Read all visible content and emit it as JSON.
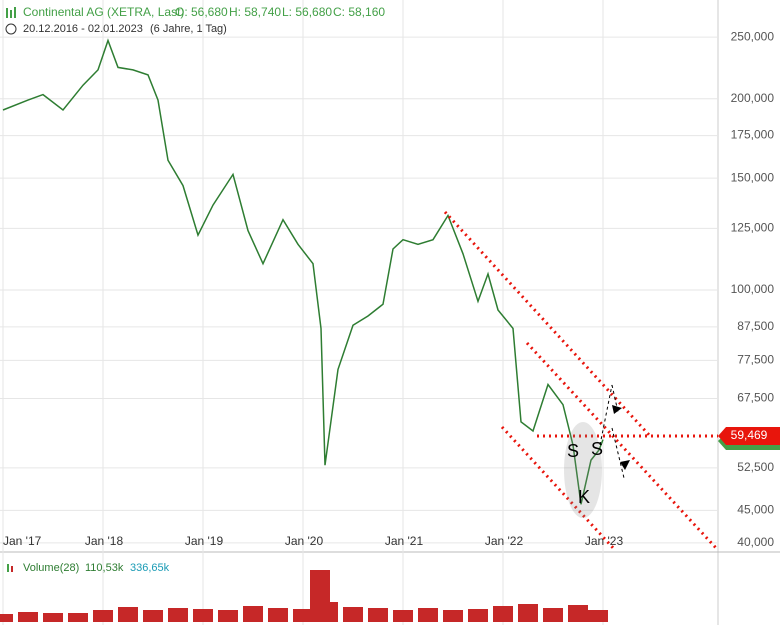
{
  "chart_data": [
    {
      "type": "line",
      "title": "Continental AG (XETRA, Last)",
      "ohlc_labels": [
        "O: 56,680",
        "H: 58,740",
        "L: 56,680",
        "C: 58,160"
      ],
      "subtitle": "20.12.2016 - 02.01.2023",
      "period": "(6 Jahre, 1 Tag)",
      "log_scale": true,
      "grid": true,
      "x": [
        2017.0,
        2017.25,
        2017.4,
        2017.6,
        2017.8,
        2017.95,
        2018.05,
        2018.15,
        2018.3,
        2018.45,
        2018.55,
        2018.65,
        2018.8,
        2018.95,
        2019.1,
        2019.3,
        2019.45,
        2019.6,
        2019.8,
        2019.95,
        2020.1,
        2020.18,
        2020.22,
        2020.35,
        2020.5,
        2020.65,
        2020.8,
        2020.9,
        2021.0,
        2021.15,
        2021.3,
        2021.45,
        2021.6,
        2021.75,
        2021.85,
        2021.95,
        2022.1,
        2022.18,
        2022.3,
        2022.45,
        2022.6,
        2022.7,
        2022.78,
        2022.88,
        2022.96,
        2023.0
      ],
      "series": [
        {
          "name": "Continental AG",
          "color": "#2e7d32",
          "values": [
            192,
            199,
            203,
            192,
            210,
            222,
            247,
            224,
            222,
            218,
            199,
            160,
            146,
            122,
            136,
            152,
            124,
            110,
            129,
            118,
            110,
            87,
            53,
            75,
            88,
            91,
            95,
            116,
            120,
            118,
            120,
            131,
            114,
            96,
            106,
            93,
            87,
            62,
            60,
            71,
            66,
            57,
            46,
            54,
            56,
            58.16
          ]
        }
      ],
      "xlim": [
        2016.97,
        2024.15
      ],
      "xticks": [
        {
          "value": 2017,
          "label": "Jan '17"
        },
        {
          "value": 2018,
          "label": "Jan '18"
        },
        {
          "value": 2019,
          "label": "Jan '19"
        },
        {
          "value": 2020,
          "label": "Jan '20"
        },
        {
          "value": 2021,
          "label": "Jan '21"
        },
        {
          "value": 2022,
          "label": "Jan '22"
        },
        {
          "value": 2023,
          "label": "Jan '23"
        }
      ],
      "ylim": [
        38.7,
        286
      ],
      "yticks": [
        {
          "value": 250,
          "label": "250,000"
        },
        {
          "value": 200,
          "label": "200,000"
        },
        {
          "value": 175,
          "label": "175,000"
        },
        {
          "value": 150,
          "label": "150,000"
        },
        {
          "value": 125,
          "label": "125,000"
        },
        {
          "value": 100,
          "label": "100,000"
        },
        {
          "value": 87.5,
          "label": "87,500"
        },
        {
          "value": 77.5,
          "label": "77,500"
        },
        {
          "value": 67.5,
          "label": "67,500"
        },
        {
          "value": 52.5,
          "label": "52,500"
        },
        {
          "value": 45,
          "label": "45,000"
        },
        {
          "value": 40,
          "label": "40,000"
        }
      ],
      "price_tag": {
        "value": 59.469,
        "label": "59,469",
        "color": "#e8150c"
      },
      "annotations": [
        "S",
        "S",
        "K"
      ]
    },
    {
      "type": "bar",
      "title": "Volume(28)",
      "legend_values": [
        "110,53k",
        "336,65k"
      ],
      "x": [
        2017.0,
        2017.25,
        2017.5,
        2017.75,
        2018.0,
        2018.25,
        2018.5,
        2018.75,
        2019.0,
        2019.25,
        2019.5,
        2019.75,
        2020.0,
        2020.17,
        2020.25,
        2020.5,
        2020.75,
        2021.0,
        2021.25,
        2021.5,
        2021.75,
        2022.0,
        2022.25,
        2022.5,
        2022.75,
        2022.95
      ],
      "values": [
        400,
        500,
        450,
        450,
        600,
        750,
        600,
        700,
        650,
        600,
        800,
        700,
        650,
        2600,
        1000,
        750,
        700,
        600,
        700,
        600,
        650,
        800,
        900,
        700,
        850,
        600
      ],
      "color": "#c62828",
      "ylim": [
        0,
        3000
      ]
    }
  ]
}
